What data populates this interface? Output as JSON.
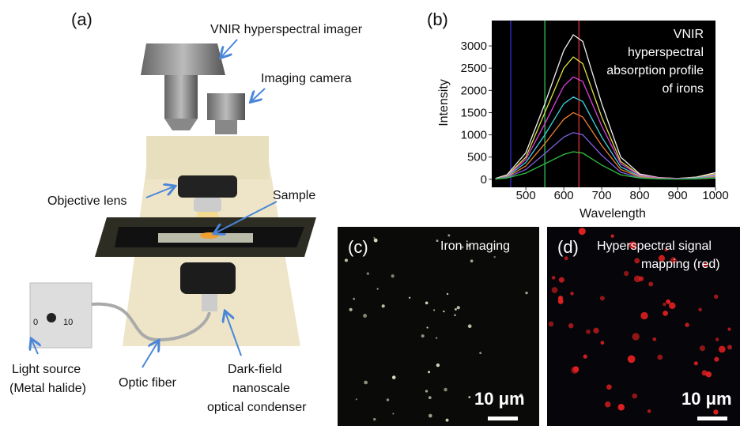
{
  "panel_a": {
    "label": "(a)",
    "imager": "VNIR hyperspectral imager",
    "camera": "Imaging camera",
    "objective": "Objective  lens",
    "sample": "Sample",
    "light_source": [
      "Light source",
      "(Metal halide)"
    ],
    "dial": [
      "0",
      "10"
    ],
    "fiber": "Optic fiber",
    "condenser": [
      "Dark-field",
      "nanoscale",
      "optical condenser"
    ]
  },
  "chart_data": {
    "type": "line",
    "label": "(b)",
    "xlabel": "Wavelength",
    "ylabel": "Intensity",
    "annotation": [
      "VNIR",
      "hyperspectral",
      "absorption profile",
      "of  irons"
    ],
    "xlim": [
      410,
      1000
    ],
    "ylim": [
      -180,
      3570
    ],
    "xticks": [
      500,
      600,
      700,
      800,
      900,
      1000
    ],
    "yticks": [
      0,
      500,
      1000,
      1500,
      2000,
      2500,
      3000
    ],
    "markers": [
      {
        "value": 460,
        "color": "#2a2ab8"
      },
      {
        "value": 550,
        "color": "#2aa84a"
      },
      {
        "value": 640,
        "color": "#c02a2a"
      }
    ],
    "x": [
      420,
      450,
      500,
      550,
      600,
      625,
      650,
      700,
      750,
      800,
      850,
      900,
      950,
      1000
    ],
    "series": [
      {
        "color": "#f0f0f0",
        "values": [
          20,
          100,
          600,
          1700,
          2900,
          3250,
          3100,
          1700,
          500,
          120,
          40,
          20,
          50,
          150
        ]
      },
      {
        "color": "#e0e040",
        "values": [
          10,
          80,
          500,
          1500,
          2500,
          2750,
          2600,
          1400,
          400,
          100,
          30,
          20,
          40,
          120
        ]
      },
      {
        "color": "#e040e0",
        "values": [
          10,
          70,
          450,
          1250,
          2100,
          2300,
          2200,
          1200,
          350,
          90,
          30,
          20,
          30,
          100
        ]
      },
      {
        "color": "#40d0e0",
        "values": [
          10,
          60,
          380,
          1000,
          1700,
          1850,
          1750,
          950,
          280,
          70,
          20,
          10,
          30,
          80
        ]
      },
      {
        "color": "#f08030",
        "values": [
          5,
          50,
          300,
          800,
          1350,
          1500,
          1400,
          760,
          220,
          60,
          20,
          10,
          20,
          60
        ]
      },
      {
        "color": "#8060e0",
        "values": [
          5,
          40,
          220,
          580,
          950,
          1050,
          1000,
          540,
          160,
          40,
          15,
          10,
          20,
          40
        ]
      },
      {
        "color": "#30c040",
        "values": [
          5,
          30,
          140,
          350,
          560,
          620,
          590,
          320,
          100,
          30,
          10,
          5,
          10,
          30
        ]
      }
    ]
  },
  "panel_c": {
    "label": "(c)",
    "title": "Iron imaging",
    "scale": "10 μm"
  },
  "panel_d": {
    "label": "(d)",
    "title": [
      "Hyperspectral  signal",
      "mapping (red)"
    ],
    "scale": "10 μm"
  }
}
